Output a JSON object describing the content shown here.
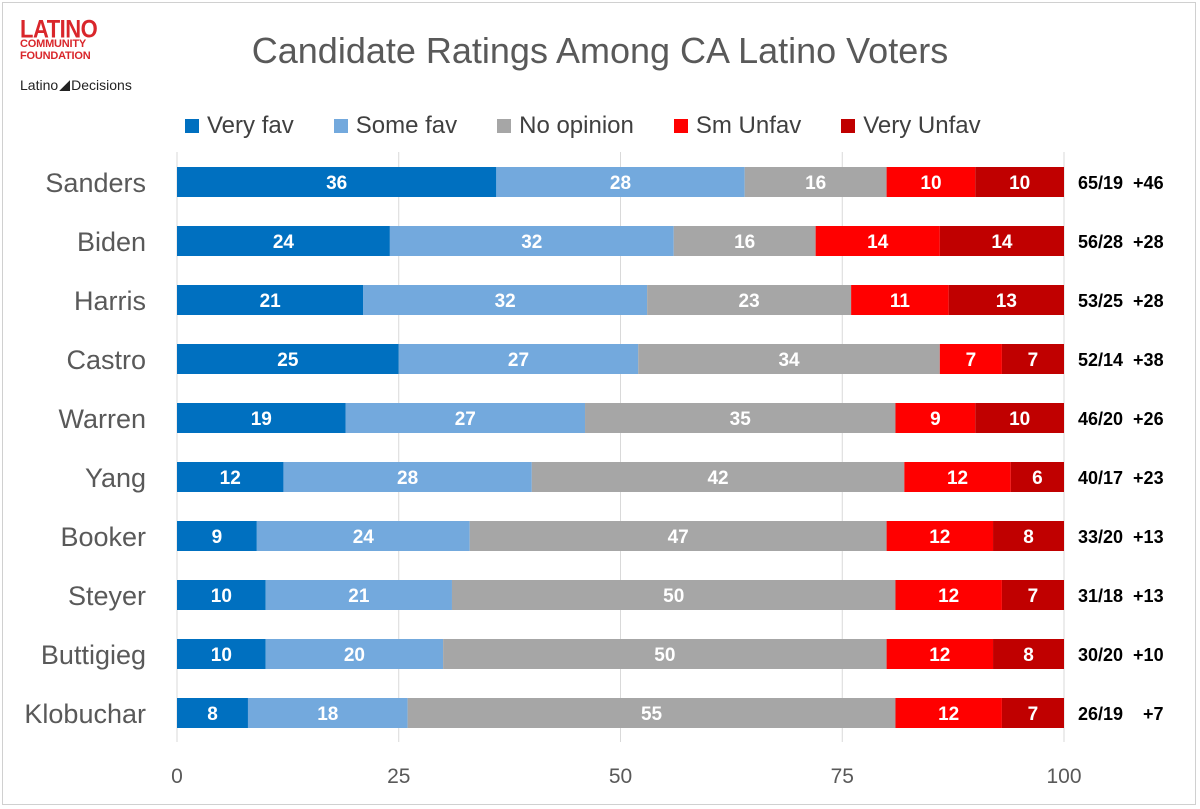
{
  "logo": {
    "line1": "LATINO",
    "line2": "COMMUNITY",
    "line3": "FOUNDATION",
    "partner_left": "Latino",
    "partner_right": "Decisions"
  },
  "chart_data": {
    "type": "bar",
    "orientation": "horizontal",
    "stacked": true,
    "title": "Candidate Ratings Among CA Latino Voters",
    "categories": [
      "Sanders",
      "Biden",
      "Harris",
      "Castro",
      "Warren",
      "Yang",
      "Booker",
      "Steyer",
      "Buttigieg",
      "Klobuchar"
    ],
    "series": [
      {
        "name": "Very fav",
        "color": "#0070c0",
        "values": [
          36,
          24,
          21,
          25,
          19,
          12,
          9,
          10,
          10,
          8
        ]
      },
      {
        "name": "Some fav",
        "color": "#73a9dd",
        "values": [
          28,
          32,
          32,
          27,
          27,
          28,
          24,
          21,
          20,
          18
        ]
      },
      {
        "name": "No opinion",
        "color": "#a6a6a6",
        "values": [
          16,
          16,
          23,
          34,
          35,
          42,
          47,
          50,
          50,
          55
        ]
      },
      {
        "name": "Sm Unfav",
        "color": "#ff0000",
        "values": [
          10,
          14,
          11,
          7,
          9,
          12,
          12,
          12,
          12,
          12
        ]
      },
      {
        "name": "Very Unfav",
        "color": "#c00000",
        "values": [
          10,
          14,
          13,
          7,
          10,
          6,
          8,
          7,
          8,
          7
        ]
      }
    ],
    "annotations": [
      "65/19  +46",
      "56/28  +28",
      "53/25  +28",
      "52/14  +38",
      "46/20  +26",
      "40/17  +23",
      "33/20  +13",
      "31/18  +13",
      "30/20  +10",
      "26/19    +7"
    ],
    "xlim": [
      0,
      100
    ],
    "xticks": [
      "0",
      "25",
      "50",
      "75",
      "100"
    ],
    "grid": true,
    "legend_position": "top"
  }
}
